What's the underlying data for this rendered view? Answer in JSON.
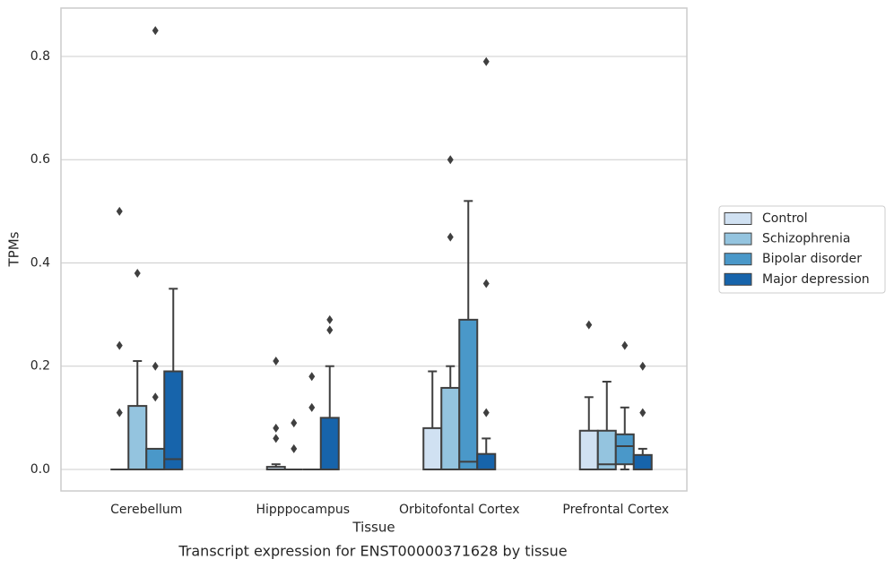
{
  "chart_data": {
    "type": "box",
    "title": "Transcript expression for ENST00000371628 by tissue",
    "xlabel": "Tissue",
    "ylabel": "TPMs",
    "categories": [
      "Cerebellum",
      "Hipppocampus",
      "Orbitofontal Cortex",
      "Prefrontal Cortex"
    ],
    "ylim": [
      -0.0417,
      0.8937
    ],
    "yticks": [
      {
        "value": 0,
        "label": "0.0"
      },
      0.2,
      0.4,
      0.6,
      0.8
    ],
    "grid": true,
    "legend": "right",
    "series": [
      {
        "name": "Control",
        "color": "#d0e1f2",
        "boxes": [
          {
            "min": 0,
            "q1": 0,
            "median": 0,
            "q3": 0,
            "max": 0,
            "outliers": [
              0.5,
              0.24,
              0.11
            ]
          },
          {
            "min": 0,
            "q1": 0,
            "median": 0,
            "q3": 0.005,
            "max": 0.01,
            "outliers": [
              0.21,
              0.08,
              0.06
            ]
          },
          {
            "min": 0,
            "q1": 0,
            "median": 0,
            "q3": 0.08,
            "max": 0.19,
            "outliers": []
          },
          {
            "min": 0,
            "q1": 0,
            "median": 0,
            "q3": 0.075,
            "max": 0.14,
            "outliers": [
              0.28
            ]
          }
        ]
      },
      {
        "name": "Schizophrenia",
        "color": "#94c4df",
        "boxes": [
          {
            "min": 0,
            "q1": 0,
            "median": 0,
            "q3": 0.123,
            "max": 0.21,
            "outliers": [
              0.38
            ]
          },
          {
            "min": 0,
            "q1": 0,
            "median": 0,
            "q3": 0,
            "max": 0,
            "outliers": [
              0.09,
              0.04
            ]
          },
          {
            "min": 0,
            "q1": 0,
            "median": 0,
            "q3": 0.158,
            "max": 0.2,
            "outliers": [
              0.6,
              0.45
            ]
          },
          {
            "min": 0,
            "q1": 0,
            "median": 0.01,
            "q3": 0.075,
            "max": 0.17,
            "outliers": []
          }
        ]
      },
      {
        "name": "Bipolar disorder",
        "color": "#4a98c9",
        "boxes": [
          {
            "min": 0,
            "q1": 0,
            "median": 0,
            "q3": 0.04,
            "max": 0.04,
            "outliers": [
              0.85,
              0.2,
              0.14
            ]
          },
          {
            "min": 0,
            "q1": 0,
            "median": 0,
            "q3": 0,
            "max": 0,
            "outliers": [
              0.18,
              0.12
            ]
          },
          {
            "min": 0,
            "q1": 0,
            "median": 0.015,
            "q3": 0.29,
            "max": 0.52,
            "outliers": []
          },
          {
            "min": 0,
            "q1": 0.01,
            "median": 0.045,
            "q3": 0.068,
            "max": 0.12,
            "outliers": [
              0.24
            ]
          }
        ]
      },
      {
        "name": "Major depression",
        "color": "#1764ab",
        "boxes": [
          {
            "min": 0,
            "q1": 0,
            "median": 0.02,
            "q3": 0.19,
            "max": 0.35,
            "outliers": []
          },
          {
            "min": 0,
            "q1": 0,
            "median": 0,
            "q3": 0.1,
            "max": 0.2,
            "outliers": [
              0.29,
              0.27
            ]
          },
          {
            "min": 0,
            "q1": 0,
            "median": 0,
            "q3": 0.03,
            "max": 0.06,
            "outliers": [
              0.79,
              0.36,
              0.11
            ]
          },
          {
            "min": 0,
            "q1": 0,
            "median": 0,
            "q3": 0.028,
            "max": 0.04,
            "outliers": [
              0.2,
              0.11
            ]
          }
        ]
      }
    ]
  }
}
